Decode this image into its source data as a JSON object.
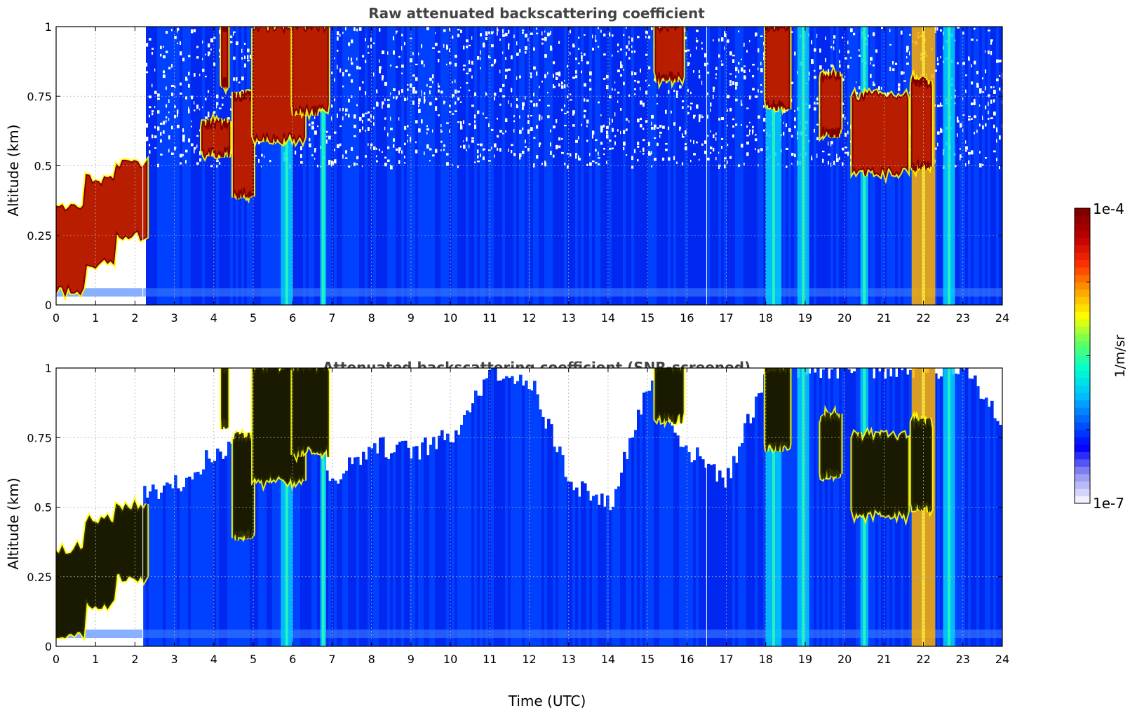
{
  "figure": {
    "colorbar": {
      "max_label": "1e-4",
      "min_label": "1e-7",
      "unit_label": "1/m/sr",
      "scale": "log",
      "range": [
        1e-07,
        0.0001
      ],
      "colormap": [
        "#f0f0ff",
        "#9090f0",
        "#0000ff",
        "#0060ff",
        "#00c0ff",
        "#00ffd0",
        "#60ff60",
        "#ffff00",
        "#ffa000",
        "#ff3000",
        "#c00000",
        "#800000"
      ]
    },
    "xlabel_shared": "Time (UTC)"
  },
  "chart_data": [
    {
      "type": "heatmap",
      "title": "Raw attenuated backscattering coefficient",
      "xlabel": "",
      "ylabel": "Altitude (km)",
      "xlim": [
        0,
        24
      ],
      "ylim": [
        0,
        1
      ],
      "x_ticks": [
        "0",
        "1",
        "2",
        "3",
        "4",
        "5",
        "6",
        "7",
        "8",
        "9",
        "10",
        "11",
        "12",
        "13",
        "14",
        "15",
        "16",
        "17",
        "18",
        "19",
        "20",
        "21",
        "22",
        "23",
        "24"
      ],
      "y_ticks": [
        "0",
        "0.25",
        "0.5",
        "0.75",
        "1"
      ],
      "grid": true,
      "screened": false,
      "variable": "attenuated backscatter",
      "units": "1/m/sr",
      "clouds": [
        {
          "t0": 0.0,
          "t1": 2.3,
          "base": [
            0.05,
            0.15,
            0.25
          ],
          "top": [
            0.35,
            0.45,
            0.5
          ],
          "level": "high"
        },
        {
          "t0": 3.7,
          "t1": 4.4,
          "base": [
            0.55
          ],
          "top": [
            0.65
          ],
          "level": "high"
        },
        {
          "t0": 4.2,
          "t1": 4.35,
          "base": [
            0.8
          ],
          "top": [
            1.0
          ],
          "level": "high"
        },
        {
          "t0": 4.5,
          "t1": 5.0,
          "base": [
            0.4
          ],
          "top": [
            0.75
          ],
          "level": "high"
        },
        {
          "t0": 5.0,
          "t1": 6.3,
          "base": [
            0.6
          ],
          "top": [
            1.0
          ],
          "level": "high"
        },
        {
          "t0": 6.0,
          "t1": 6.9,
          "base": [
            0.7
          ],
          "top": [
            1.0
          ],
          "level": "high"
        },
        {
          "t0": 15.2,
          "t1": 15.9,
          "base": [
            0.82
          ],
          "top": [
            1.0
          ],
          "level": "high"
        },
        {
          "t0": 18.0,
          "t1": 18.6,
          "base": [
            0.72
          ],
          "top": [
            1.0
          ],
          "level": "high"
        },
        {
          "t0": 19.4,
          "t1": 19.9,
          "base": [
            0.62
          ],
          "top": [
            0.82
          ],
          "level": "high"
        },
        {
          "t0": 20.2,
          "t1": 21.6,
          "base": [
            0.48
          ],
          "top": [
            0.75
          ],
          "level": "high"
        },
        {
          "t0": 21.7,
          "t1": 22.2,
          "base": [
            0.5
          ],
          "top": [
            0.8
          ],
          "level": "high"
        }
      ],
      "columns": [
        {
          "t0": 5.7,
          "t1": 6.0,
          "level": "mid"
        },
        {
          "t0": 6.7,
          "t1": 6.85,
          "level": "mid"
        },
        {
          "t0": 18.0,
          "t1": 18.4,
          "level": "mid"
        },
        {
          "t0": 18.8,
          "t1": 19.1,
          "level": "mid"
        },
        {
          "t0": 20.4,
          "t1": 20.6,
          "level": "mid"
        },
        {
          "t0": 21.7,
          "t1": 22.3,
          "level": "warm"
        },
        {
          "t0": 22.5,
          "t1": 22.8,
          "level": "mid"
        }
      ]
    },
    {
      "type": "heatmap",
      "title": "Attenuated backscattering coefficient (SNR-screened)",
      "xlabel": "Time (UTC)",
      "ylabel": "Altitude (km)",
      "xlim": [
        0,
        24
      ],
      "ylim": [
        0,
        1
      ],
      "x_ticks": [
        "0",
        "1",
        "2",
        "3",
        "4",
        "5",
        "6",
        "7",
        "8",
        "9",
        "10",
        "11",
        "12",
        "13",
        "14",
        "15",
        "16",
        "17",
        "18",
        "19",
        "20",
        "21",
        "22",
        "23",
        "24"
      ],
      "y_ticks": [
        "0",
        "0.25",
        "0.5",
        "0.75",
        "1"
      ],
      "grid": true,
      "screened": true,
      "variable": "attenuated backscatter",
      "units": "1/m/sr",
      "clouds": [
        {
          "t0": 0.0,
          "t1": 2.3,
          "base": [
            0.05,
            0.15,
            0.25
          ],
          "top": [
            0.35,
            0.45,
            0.5
          ],
          "level": "over"
        },
        {
          "t0": 4.2,
          "t1": 4.35,
          "base": [
            0.8
          ],
          "top": [
            1.0
          ],
          "level": "over"
        },
        {
          "t0": 4.5,
          "t1": 5.0,
          "base": [
            0.4
          ],
          "top": [
            0.75
          ],
          "level": "over"
        },
        {
          "t0": 5.0,
          "t1": 6.3,
          "base": [
            0.6
          ],
          "top": [
            1.0
          ],
          "level": "over"
        },
        {
          "t0": 6.0,
          "t1": 6.9,
          "base": [
            0.7
          ],
          "top": [
            1.0
          ],
          "level": "over"
        },
        {
          "t0": 15.2,
          "t1": 15.9,
          "base": [
            0.82
          ],
          "top": [
            1.0
          ],
          "level": "over"
        },
        {
          "t0": 18.0,
          "t1": 18.6,
          "base": [
            0.72
          ],
          "top": [
            1.0
          ],
          "level": "over"
        },
        {
          "t0": 19.4,
          "t1": 19.9,
          "base": [
            0.62
          ],
          "top": [
            0.82
          ],
          "level": "over"
        },
        {
          "t0": 20.2,
          "t1": 21.6,
          "base": [
            0.48
          ],
          "top": [
            0.75
          ],
          "level": "over"
        },
        {
          "t0": 21.7,
          "t1": 22.2,
          "base": [
            0.5
          ],
          "top": [
            0.8
          ],
          "level": "over"
        }
      ],
      "columns": [
        {
          "t0": 5.7,
          "t1": 6.0,
          "level": "mid"
        },
        {
          "t0": 6.7,
          "t1": 6.85,
          "level": "mid"
        },
        {
          "t0": 18.0,
          "t1": 18.4,
          "level": "mid"
        },
        {
          "t0": 18.8,
          "t1": 19.1,
          "level": "mid"
        },
        {
          "t0": 20.4,
          "t1": 20.6,
          "level": "mid"
        },
        {
          "t0": 21.7,
          "t1": 22.3,
          "level": "warm"
        },
        {
          "t0": 22.5,
          "t1": 22.8,
          "level": "mid"
        }
      ],
      "signal_top_profile": [
        [
          0,
          0.37
        ],
        [
          1,
          0.45
        ],
        [
          2,
          0.55
        ],
        [
          3,
          0.58
        ],
        [
          4,
          0.7
        ],
        [
          5,
          0.72
        ],
        [
          6,
          0.95
        ],
        [
          7,
          0.6
        ],
        [
          8,
          0.72
        ],
        [
          9,
          0.7
        ],
        [
          10,
          0.75
        ],
        [
          11,
          1.0
        ],
        [
          12,
          0.95
        ],
        [
          13,
          0.6
        ],
        [
          14,
          0.5
        ],
        [
          15,
          0.95
        ],
        [
          16,
          0.7
        ],
        [
          17,
          0.6
        ],
        [
          18,
          1.0
        ],
        [
          19,
          1.0
        ],
        [
          20,
          1.0
        ],
        [
          21,
          1.0
        ],
        [
          22,
          1.0
        ],
        [
          23,
          1.0
        ],
        [
          24,
          0.8
        ]
      ]
    }
  ]
}
